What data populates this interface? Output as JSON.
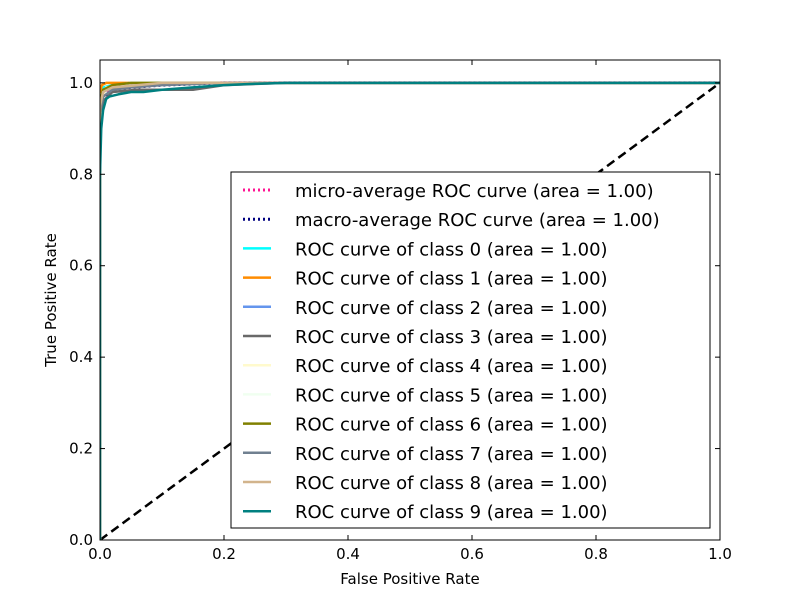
{
  "chart_data": {
    "type": "line",
    "title": "",
    "xlabel": "False Positive Rate",
    "ylabel": "True Positive Rate",
    "xlim": [
      0.0,
      1.0
    ],
    "ylim": [
      0.0,
      1.05
    ],
    "xticks": [
      "0.0",
      "0.2",
      "0.4",
      "0.6",
      "0.8",
      "1.0"
    ],
    "yticks": [
      "0.0",
      "0.2",
      "0.4",
      "0.6",
      "0.8",
      "1.0"
    ],
    "grid": false,
    "legend_position": "lower-right",
    "reference_line": {
      "x": [
        0.0,
        1.0
      ],
      "y": [
        0.0,
        1.0
      ],
      "color": "#000000",
      "style": "dashed"
    },
    "series": [
      {
        "name": "micro-average ROC curve (area = 1.00)",
        "color": "#ff1493",
        "style": "dotted",
        "x": [
          0.0,
          0.0,
          0.003,
          0.01,
          0.02,
          0.05,
          0.1,
          0.2,
          1.0
        ],
        "y": [
          0.0,
          0.93,
          0.96,
          0.98,
          0.99,
          0.995,
          0.998,
          1.0,
          1.0
        ]
      },
      {
        "name": "macro-average ROC curve (area = 1.00)",
        "color": "#000080",
        "style": "dotted",
        "x": [
          0.0,
          0.0,
          0.003,
          0.01,
          0.02,
          0.05,
          0.1,
          0.2,
          1.0
        ],
        "y": [
          0.0,
          0.92,
          0.95,
          0.97,
          0.985,
          0.99,
          0.995,
          1.0,
          1.0
        ]
      },
      {
        "name": "ROC curve of class 0 (area = 1.00)",
        "color": "#00ffff",
        "style": "solid",
        "x": [
          0.0,
          0.0,
          0.005,
          0.02,
          0.05,
          1.0
        ],
        "y": [
          0.0,
          0.97,
          0.99,
          0.995,
          1.0,
          1.0
        ]
      },
      {
        "name": "ROC curve of class 1 (area = 1.00)",
        "color": "#ff8c00",
        "style": "solid",
        "x": [
          0.0,
          0.0,
          0.003,
          0.01,
          1.0
        ],
        "y": [
          0.0,
          0.98,
          0.995,
          1.0,
          1.0
        ]
      },
      {
        "name": "ROC curve of class 2 (area = 1.00)",
        "color": "#6495ed",
        "style": "solid",
        "x": [
          0.0,
          0.0,
          0.005,
          0.02,
          0.05,
          1.0
        ],
        "y": [
          0.0,
          0.95,
          0.98,
          0.99,
          1.0,
          1.0
        ]
      },
      {
        "name": "ROC curve of class 3 (area = 1.00)",
        "color": "#696969",
        "style": "solid",
        "x": [
          0.0,
          0.0,
          0.005,
          0.02,
          0.06,
          0.1,
          0.15,
          0.2,
          0.3,
          1.0
        ],
        "y": [
          0.0,
          0.93,
          0.96,
          0.98,
          0.985,
          0.985,
          0.985,
          0.995,
          1.0,
          1.0
        ]
      },
      {
        "name": "ROC curve of class 4 (area = 1.00)",
        "color": "#fffacd",
        "style": "solid",
        "x": [
          0.0,
          0.0,
          0.01,
          0.05,
          1.0
        ],
        "y": [
          0.0,
          0.96,
          0.99,
          1.0,
          1.0
        ]
      },
      {
        "name": "ROC curve of class 5 (area = 1.00)",
        "color": "#f0fff0",
        "style": "solid",
        "x": [
          0.0,
          0.0,
          0.01,
          0.05,
          1.0
        ],
        "y": [
          0.0,
          0.97,
          0.99,
          1.0,
          1.0
        ]
      },
      {
        "name": "ROC curve of class 6 (area = 1.00)",
        "color": "#808000",
        "style": "solid",
        "x": [
          0.0,
          0.0,
          0.005,
          0.02,
          0.05,
          1.0
        ],
        "y": [
          0.0,
          0.96,
          0.985,
          0.995,
          1.0,
          1.0
        ]
      },
      {
        "name": "ROC curve of class 7 (area = 1.00)",
        "color": "#708090",
        "style": "solid",
        "x": [
          0.0,
          0.0,
          0.005,
          0.02,
          0.05,
          0.1,
          0.2,
          1.0
        ],
        "y": [
          0.0,
          0.94,
          0.97,
          0.985,
          0.99,
          0.995,
          1.0,
          1.0
        ]
      },
      {
        "name": "ROC curve of class 8 (area = 1.00)",
        "color": "#d2b48c",
        "style": "solid",
        "x": [
          0.0,
          0.0,
          0.005,
          0.02,
          0.1,
          1.0
        ],
        "y": [
          0.0,
          0.95,
          0.98,
          0.99,
          1.0,
          1.0
        ]
      },
      {
        "name": "ROC curve of class 9 (area = 1.00)",
        "color": "#008080",
        "style": "solid",
        "x": [
          0.0,
          0.0,
          0.002,
          0.005,
          0.01,
          0.015,
          0.03,
          0.05,
          0.07,
          0.1,
          0.15,
          0.2,
          0.25,
          0.3,
          1.0
        ],
        "y": [
          0.0,
          0.8,
          0.9,
          0.94,
          0.965,
          0.97,
          0.975,
          0.98,
          0.98,
          0.985,
          0.99,
          0.995,
          0.998,
          1.0,
          1.0
        ]
      }
    ]
  }
}
